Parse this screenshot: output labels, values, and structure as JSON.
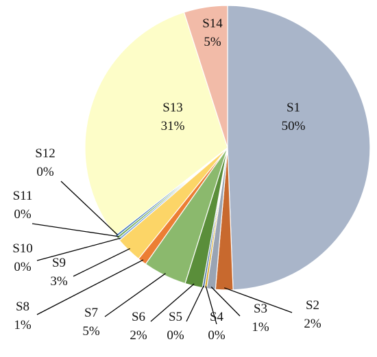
{
  "chart_data": {
    "type": "pie",
    "title": "",
    "start_angle_deg": 0,
    "direction": "clockwise",
    "slices": [
      {
        "name": "S1",
        "value": 50,
        "label": "50%",
        "color": "#a9b5c9"
      },
      {
        "name": "S2",
        "value": 2,
        "label": "2%",
        "color": "#c8692e"
      },
      {
        "name": "S3",
        "value": 1,
        "label": "1%",
        "color": "#9aa4b3"
      },
      {
        "name": "S4",
        "value": 0,
        "label": "0%",
        "color": "#d4a017"
      },
      {
        "name": "S5",
        "value": 0,
        "label": "0%",
        "color": "#4f77a8"
      },
      {
        "name": "S6",
        "value": 2,
        "label": "2%",
        "color": "#5a8e3a"
      },
      {
        "name": "S7",
        "value": 5,
        "label": "5%",
        "color": "#8bb96d"
      },
      {
        "name": "S8",
        "value": 1,
        "label": "1%",
        "color": "#ec7e34"
      },
      {
        "name": "S9",
        "value": 3,
        "label": "3%",
        "color": "#fcd567"
      },
      {
        "name": "S10",
        "value": 0,
        "label": "0%",
        "color": "#7ea6d6"
      },
      {
        "name": "S11",
        "value": 0,
        "label": "0%",
        "color": "#6aa84f"
      },
      {
        "name": "S12",
        "value": 0,
        "label": "0%",
        "color": "#4a7ebb"
      },
      {
        "name": "S13",
        "value": 31,
        "label": "31%",
        "color": "#fdfdc8"
      },
      {
        "name": "S14",
        "value": 5,
        "label": "5%",
        "color": "#f2bba8"
      }
    ]
  }
}
